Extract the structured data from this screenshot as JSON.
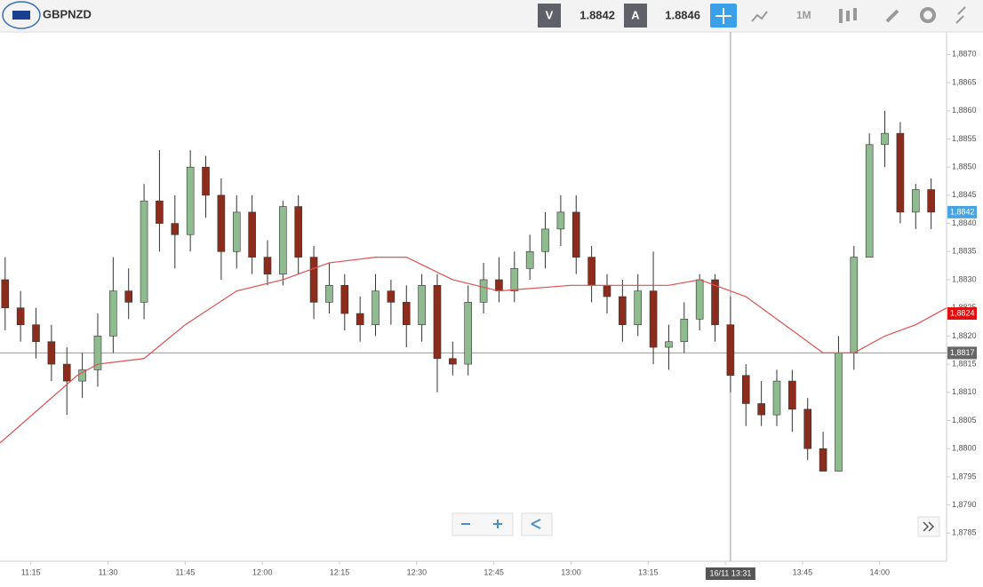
{
  "toolbar": {
    "symbol": "GBPNZD",
    "bid_label": "V",
    "bid": "1.8842",
    "ask_label": "A",
    "ask": "1.8846",
    "timeframe": "1M"
  },
  "chart_data": {
    "type": "candlestick",
    "up_color": "#8fbc8f",
    "down_color": "#8b2c1c",
    "x": [
      "11:10",
      "11:13",
      "11:16",
      "11:19",
      "11:22",
      "11:25",
      "11:28",
      "11:31",
      "11:34",
      "11:37",
      "11:40",
      "11:43",
      "11:46",
      "11:49",
      "11:52",
      "11:55",
      "11:58",
      "12:01",
      "12:04",
      "12:07",
      "12:10",
      "12:13",
      "12:16",
      "12:19",
      "12:22",
      "12:25",
      "12:28",
      "12:31",
      "12:34",
      "12:37",
      "12:40",
      "12:43",
      "12:46",
      "12:49",
      "12:52",
      "12:55",
      "12:58",
      "13:01",
      "13:04",
      "13:07",
      "13:10",
      "13:13",
      "13:16",
      "13:19",
      "13:22",
      "13:25",
      "13:28",
      "13:31",
      "13:34",
      "13:37",
      "13:40",
      "13:43",
      "13:46",
      "13:49",
      "13:52",
      "13:55",
      "13:58",
      "14:01",
      "14:04",
      "14:07",
      "14:10"
    ],
    "open": [
      1.883,
      1.8825,
      1.8822,
      1.8819,
      1.8815,
      1.8812,
      1.8814,
      1.882,
      1.8828,
      1.8826,
      1.8844,
      1.884,
      1.8838,
      1.885,
      1.8845,
      1.8835,
      1.8842,
      1.8834,
      1.8831,
      1.8843,
      1.8834,
      1.8826,
      1.8829,
      1.8824,
      1.8822,
      1.8828,
      1.8826,
      1.8822,
      1.8829,
      1.8816,
      1.8815,
      1.8826,
      1.883,
      1.8828,
      1.8832,
      1.8835,
      1.8839,
      1.8842,
      1.8834,
      1.8829,
      1.8827,
      1.8822,
      1.8828,
      1.8818,
      1.8819,
      1.8823,
      1.883,
      1.8822,
      1.8813,
      1.8808,
      1.8806,
      1.8812,
      1.8807,
      1.88,
      1.8796,
      1.8817,
      1.8834,
      1.8854,
      1.8856,
      1.8842,
      1.8846
    ],
    "high": [
      1.8834,
      1.8828,
      1.8825,
      1.8822,
      1.8818,
      1.8817,
      1.8824,
      1.8834,
      1.8832,
      1.8847,
      1.8853,
      1.8845,
      1.8853,
      1.8852,
      1.8848,
      1.8845,
      1.8845,
      1.8837,
      1.8844,
      1.8845,
      1.8836,
      1.8833,
      1.8831,
      1.8827,
      1.8831,
      1.883,
      1.8829,
      1.8831,
      1.8831,
      1.8819,
      1.8829,
      1.8833,
      1.8834,
      1.8835,
      1.8838,
      1.8842,
      1.8845,
      1.8845,
      1.8836,
      1.8831,
      1.883,
      1.8831,
      1.8835,
      1.8822,
      1.8826,
      1.8831,
      1.8831,
      1.8827,
      1.8815,
      1.8812,
      1.8814,
      1.8814,
      1.8809,
      1.8803,
      1.882,
      1.8836,
      1.8856,
      1.886,
      1.8858,
      1.8847,
      1.8848
    ],
    "low": [
      1.8821,
      1.8819,
      1.8816,
      1.8812,
      1.8806,
      1.8809,
      1.8811,
      1.8817,
      1.8823,
      1.8823,
      1.8835,
      1.8832,
      1.8835,
      1.8841,
      1.883,
      1.8832,
      1.8831,
      1.8829,
      1.8829,
      1.8831,
      1.8823,
      1.8824,
      1.8821,
      1.8819,
      1.882,
      1.8822,
      1.8818,
      1.8819,
      1.881,
      1.8813,
      1.8813,
      1.8824,
      1.8826,
      1.8826,
      1.883,
      1.8832,
      1.8836,
      1.8831,
      1.8826,
      1.8824,
      1.8819,
      1.882,
      1.8815,
      1.8814,
      1.8817,
      1.8821,
      1.8819,
      1.881,
      1.8804,
      1.8804,
      1.8804,
      1.8803,
      1.8798,
      1.8796,
      1.8796,
      1.8814,
      1.8834,
      1.885,
      1.884,
      1.8839,
      1.8839
    ],
    "close": [
      1.8825,
      1.8822,
      1.8819,
      1.8815,
      1.8812,
      1.8814,
      1.882,
      1.8828,
      1.8826,
      1.8844,
      1.884,
      1.8838,
      1.885,
      1.8845,
      1.8835,
      1.8842,
      1.8834,
      1.8831,
      1.8843,
      1.8834,
      1.8826,
      1.8829,
      1.8824,
      1.8822,
      1.8828,
      1.8826,
      1.8822,
      1.8829,
      1.8816,
      1.8815,
      1.8826,
      1.883,
      1.8828,
      1.8832,
      1.8835,
      1.8839,
      1.8842,
      1.8834,
      1.8829,
      1.8827,
      1.8822,
      1.8828,
      1.8818,
      1.8819,
      1.8823,
      1.883,
      1.8822,
      1.8813,
      1.8808,
      1.8806,
      1.8812,
      1.8807,
      1.88,
      1.8796,
      1.8817,
      1.8834,
      1.8854,
      1.8856,
      1.8842,
      1.8846,
      1.8842
    ],
    "moving_average": {
      "color": "#e05050",
      "x": [
        "11:09",
        "11:24",
        "11:28",
        "11:37",
        "11:45",
        "11:55",
        "12:04",
        "12:13",
        "12:22",
        "12:28",
        "12:37",
        "12:46",
        "13:00",
        "13:10",
        "13:19",
        "13:25",
        "13:34",
        "13:43",
        "13:49",
        "13:55",
        "14:01",
        "14:07",
        "14:13"
      ],
      "values": [
        1.8801,
        1.8813,
        1.8815,
        1.8816,
        1.8822,
        1.8828,
        1.883,
        1.8833,
        1.8834,
        1.8834,
        1.883,
        1.8828,
        1.8829,
        1.8829,
        1.8829,
        1.883,
        1.8827,
        1.8821,
        1.8817,
        1.8817,
        1.882,
        1.8822,
        1.8825
      ]
    },
    "xlim": [
      "11:09",
      "14:13"
    ],
    "xticks": [
      "11:15",
      "11:30",
      "11:45",
      "12:00",
      "12:15",
      "12:30",
      "12:45",
      "13:00",
      "13:15",
      "13:30",
      "13:45",
      "14:00"
    ],
    "ylim": [
      1.878,
      1.8874
    ],
    "yticks": [
      {
        "value": 1.8785,
        "label": "1,8785"
      },
      {
        "value": 1.879,
        "label": "1,8790"
      },
      {
        "value": 1.8795,
        "label": "1,8795"
      },
      {
        "value": 1.88,
        "label": "1,8800"
      },
      {
        "value": 1.8805,
        "label": "1,8805"
      },
      {
        "value": 1.881,
        "label": "1,8810"
      },
      {
        "value": 1.8815,
        "label": "1,8815"
      },
      {
        "value": 1.882,
        "label": "1,8820"
      },
      {
        "value": 1.8825,
        "label": "1,8825"
      },
      {
        "value": 1.883,
        "label": "1,8830"
      },
      {
        "value": 1.8835,
        "label": "1,8835"
      },
      {
        "value": 1.884,
        "label": "1,8840"
      },
      {
        "value": 1.8845,
        "label": "1,8845"
      },
      {
        "value": 1.885,
        "label": "1,8850"
      },
      {
        "value": 1.8855,
        "label": "1,8855"
      },
      {
        "value": 1.886,
        "label": "1,8860"
      },
      {
        "value": 1.8865,
        "label": "1,8865"
      },
      {
        "value": 1.887,
        "label": "1,8870"
      }
    ],
    "price_labels": [
      {
        "value": 1.8842,
        "label": "1,8842",
        "color": "#4aa3df"
      },
      {
        "value": 1.8824,
        "label": "1,8824",
        "color": "#e01010"
      },
      {
        "value": 1.8817,
        "label": "1,8817",
        "color": "#666666"
      }
    ],
    "crosshair": {
      "x": "13:31",
      "y": 1.8817,
      "x_label": "16/11 13:31"
    }
  }
}
